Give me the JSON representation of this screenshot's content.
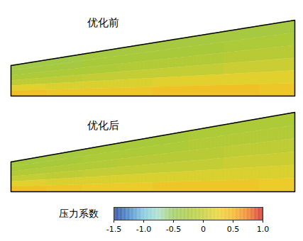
{
  "chart_data": {
    "type": "heatmap",
    "tick_labels": false,
    "panels": [
      {
        "title": "优化前",
        "cells": [
          [
            -0.35,
            -0.35,
            -0.3,
            -0.3,
            -0.3,
            -0.3,
            -0.3,
            -0.3
          ],
          [
            -0.3,
            -0.3,
            -0.25,
            -0.25,
            -0.25,
            -0.25,
            -0.2,
            -0.2
          ],
          [
            -0.2,
            -0.2,
            -0.2,
            -0.15,
            -0.15,
            -0.15,
            -0.1,
            -0.1
          ],
          [
            -0.05,
            -0.05,
            0,
            0,
            0,
            0,
            0.05,
            0.05
          ],
          [
            0.2,
            0.15,
            0.15,
            0.15,
            0.2,
            0.2,
            0.2,
            0.2
          ],
          [
            0.4,
            0.35,
            0.35,
            0.35,
            0.4,
            0.4,
            0.4,
            0.35
          ]
        ]
      },
      {
        "title": "优化后",
        "cells": [
          [
            -0.3,
            -0.3,
            -0.25,
            -0.25,
            -0.25,
            -0.2,
            -0.2,
            -0.2
          ],
          [
            -0.25,
            -0.25,
            -0.2,
            -0.2,
            -0.2,
            -0.15,
            -0.15,
            -0.15
          ],
          [
            -0.15,
            -0.15,
            -0.15,
            -0.1,
            -0.1,
            -0.1,
            -0.05,
            -0.05
          ],
          [
            0,
            -0.05,
            0,
            0,
            0,
            0,
            0.05,
            0.05
          ],
          [
            0.2,
            0.15,
            0.15,
            0.15,
            0.15,
            0.15,
            0.15,
            0.15
          ],
          [
            0.4,
            0.35,
            0.3,
            0.3,
            0.35,
            0.35,
            0.35,
            0.3
          ]
        ]
      }
    ],
    "colorbar": {
      "label": "压力系数",
      "range": [
        -1.5,
        1.0
      ],
      "ticks": [
        -1.5,
        {
          "value": -1.0,
          "label": "-1.0"
        },
        -0.5,
        0,
        0.5,
        {
          "value": 1.0,
          "label": "1.0"
        }
      ]
    }
  }
}
